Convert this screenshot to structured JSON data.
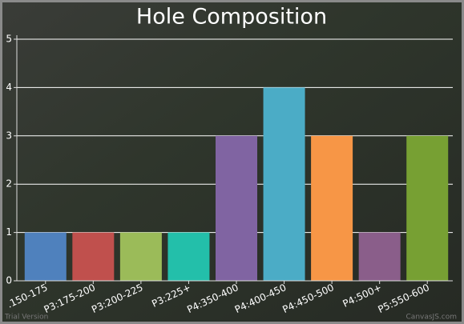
{
  "chart_data": {
    "type": "bar",
    "title": "Hole Composition",
    "categories": [
      ".150-175",
      "P3:175-200",
      "P3:200-225",
      "P3:225+",
      "P4:350-400",
      "P4:400-450",
      "P4:450-500",
      "P4:500+",
      "P5:550-600"
    ],
    "values": [
      1,
      1,
      1,
      1,
      3,
      4,
      3,
      1,
      3
    ],
    "colors": [
      "#4f81bd",
      "#c0504d",
      "#9bbb59",
      "#23bfaa",
      "#8064a2",
      "#4bacc6",
      "#f79646",
      "#8a5e8a",
      "#77a033"
    ],
    "ylim": [
      0,
      5
    ],
    "yticks": [
      0,
      1,
      2,
      3,
      4,
      5
    ],
    "grid": true,
    "credits": [
      "Trial Version",
      "CanvasJS.com"
    ]
  }
}
